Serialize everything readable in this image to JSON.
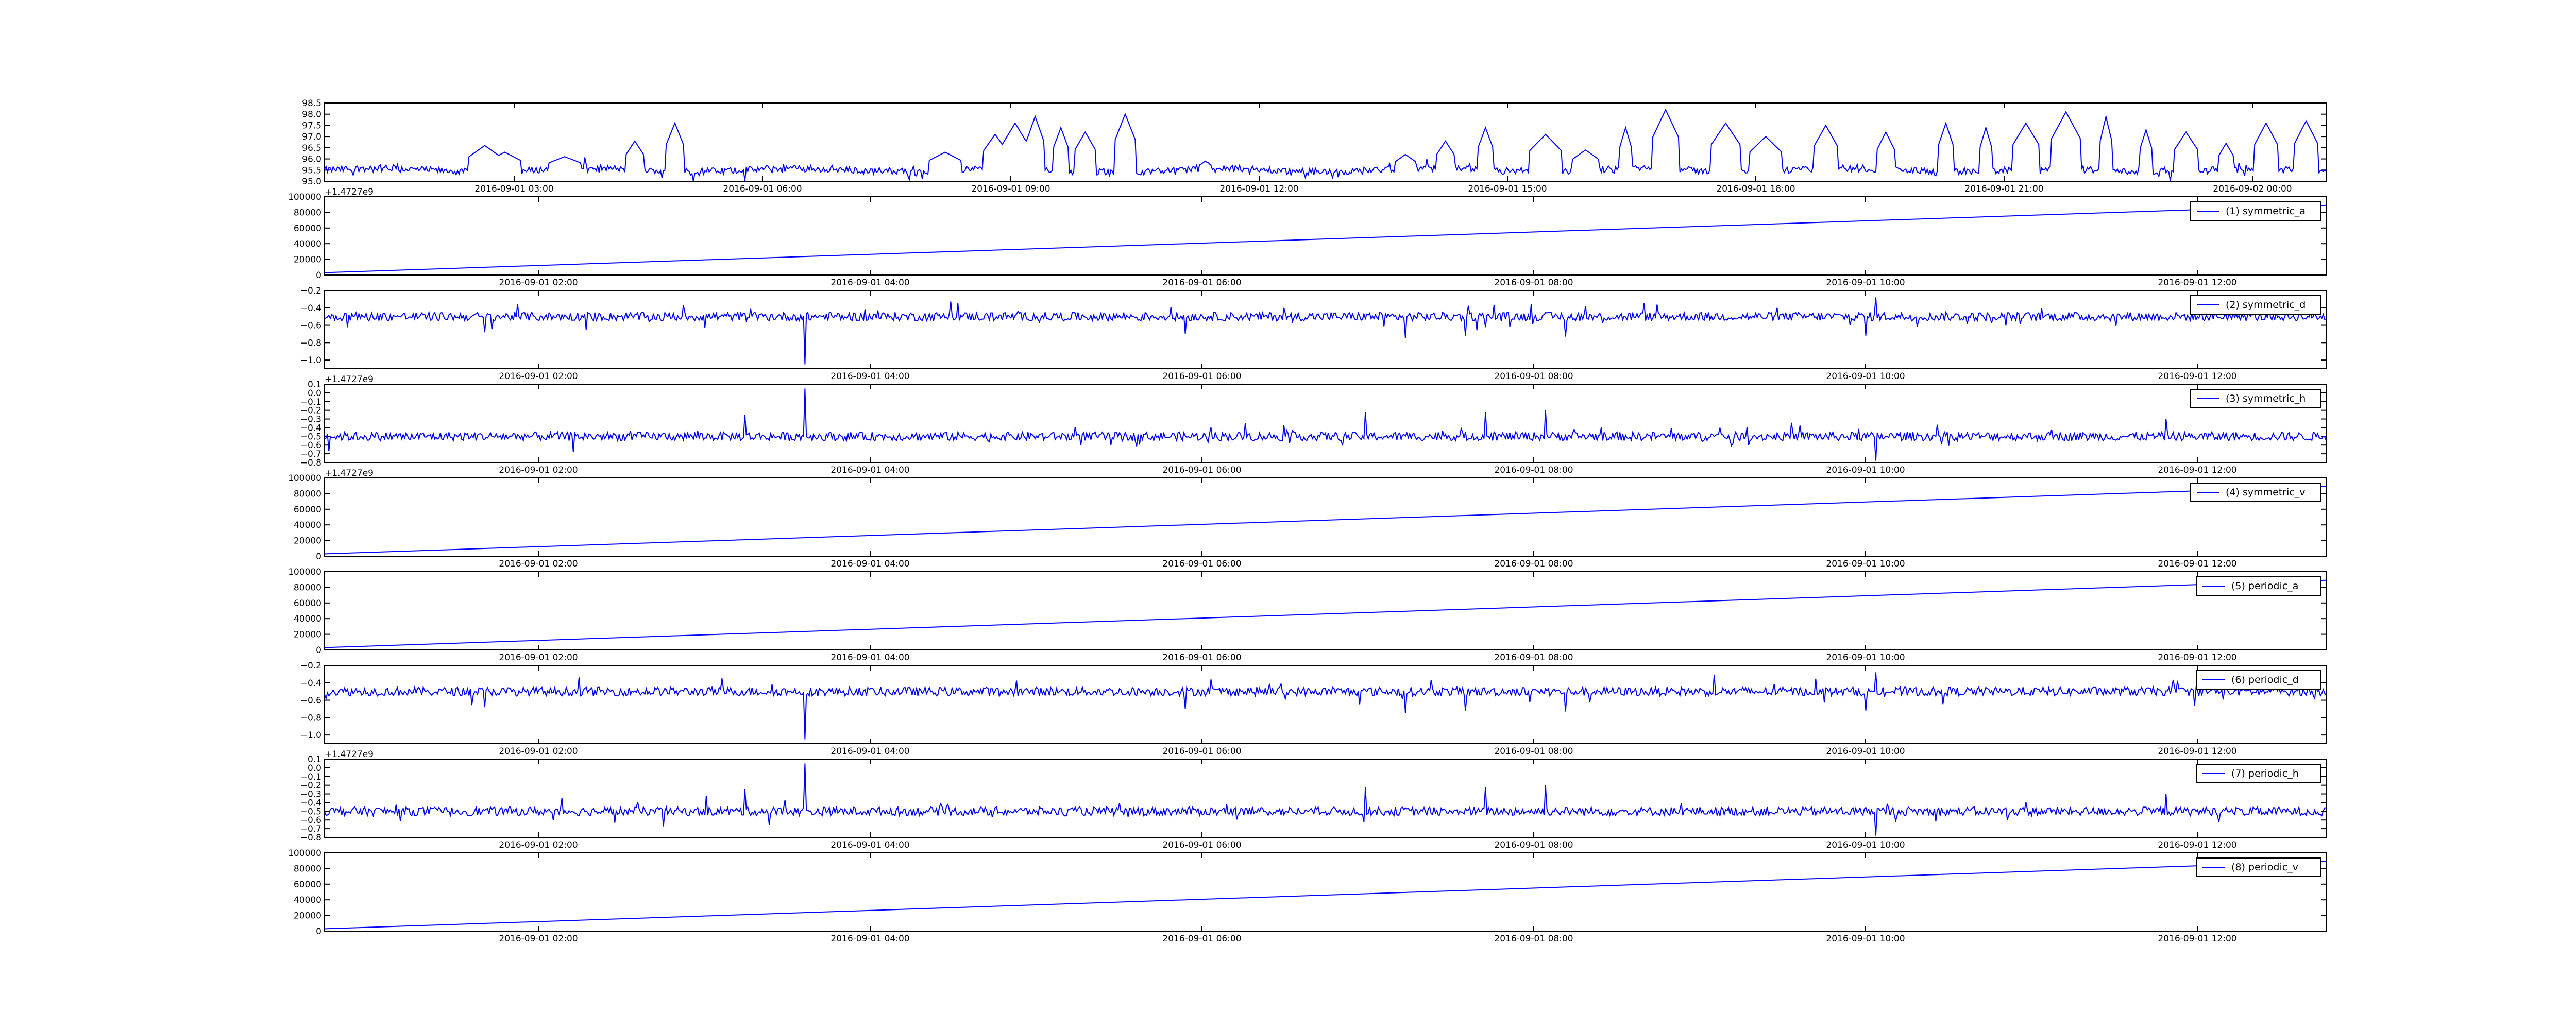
{
  "figure": {
    "background": "#ffffff",
    "line_color": "#0000ff",
    "legend_border": "#000000"
  },
  "chart_data": [
    {
      "type": "line",
      "yticks": [
        "95.0",
        "95.5",
        "96.0",
        "96.5",
        "97.0",
        "97.5",
        "98.0",
        "98.5"
      ],
      "ylim": [
        95.0,
        98.5
      ],
      "xticks": [
        "2016-09-01 03:00",
        "2016-09-01 06:00",
        "2016-09-01 09:00",
        "2016-09-01 12:00",
        "2016-09-01 15:00",
        "2016-09-01 18:00",
        "2016-09-01 21:00",
        "2016-09-02 00:00"
      ],
      "offset_label": "",
      "legend": [],
      "series": [
        {
          "kind": "noisy",
          "baseline": 95.5,
          "noise": 0.15,
          "spikes": [
            {
              "at": 0.08,
              "v": 96.6
            },
            {
              "at": 0.09,
              "v": 96.3
            },
            {
              "at": 0.12,
              "v": 96.1
            },
            {
              "at": 0.155,
              "v": 96.8
            },
            {
              "at": 0.175,
              "v": 97.6
            },
            {
              "at": 0.31,
              "v": 96.3
            },
            {
              "at": 0.335,
              "v": 97.1
            },
            {
              "at": 0.345,
              "v": 97.6
            },
            {
              "at": 0.355,
              "v": 97.9
            },
            {
              "at": 0.368,
              "v": 97.4
            },
            {
              "at": 0.38,
              "v": 97.2
            },
            {
              "at": 0.4,
              "v": 98.0
            },
            {
              "at": 0.44,
              "v": 95.9
            },
            {
              "at": 0.54,
              "v": 96.2
            },
            {
              "at": 0.56,
              "v": 96.8
            },
            {
              "at": 0.58,
              "v": 97.4
            },
            {
              "at": 0.61,
              "v": 97.1
            },
            {
              "at": 0.63,
              "v": 96.4
            },
            {
              "at": 0.65,
              "v": 97.4
            },
            {
              "at": 0.67,
              "v": 98.2
            },
            {
              "at": 0.7,
              "v": 97.6
            },
            {
              "at": 0.72,
              "v": 97.0
            },
            {
              "at": 0.75,
              "v": 97.5
            },
            {
              "at": 0.78,
              "v": 97.2
            },
            {
              "at": 0.81,
              "v": 97.6
            },
            {
              "at": 0.83,
              "v": 97.4
            },
            {
              "at": 0.85,
              "v": 97.6
            },
            {
              "at": 0.87,
              "v": 98.1
            },
            {
              "at": 0.89,
              "v": 97.9
            },
            {
              "at": 0.91,
              "v": 97.3
            },
            {
              "at": 0.93,
              "v": 97.2
            },
            {
              "at": 0.95,
              "v": 96.7
            },
            {
              "at": 0.97,
              "v": 97.6
            },
            {
              "at": 0.99,
              "v": 97.7
            }
          ]
        }
      ]
    },
    {
      "type": "line",
      "yticks": [
        "0",
        "20000",
        "40000",
        "60000",
        "80000",
        "100000"
      ],
      "ylim": [
        0,
        100000
      ],
      "xticks": [
        "2016-09-01 02:00",
        "2016-09-01 04:00",
        "2016-09-01 06:00",
        "2016-09-01 08:00",
        "2016-09-01 10:00",
        "2016-09-01 12:00"
      ],
      "offset_label": "+1.4727e9",
      "legend": [
        "(1) symmetric_a"
      ],
      "series": [
        {
          "name": "(1) symmetric_a",
          "kind": "linear",
          "y_start": 3000,
          "y_end": 89000
        }
      ]
    },
    {
      "type": "line",
      "yticks": [
        "−1.0",
        "−0.8",
        "−0.6",
        "−0.4",
        "−0.2"
      ],
      "ylim": [
        -1.1,
        -0.2
      ],
      "xticks": [
        "2016-09-01 02:00",
        "2016-09-01 04:00",
        "2016-09-01 06:00",
        "2016-09-01 08:00",
        "2016-09-01 10:00",
        "2016-09-01 12:00"
      ],
      "offset_label": "",
      "legend": [
        "(2) symmetric_d"
      ],
      "series": [
        {
          "name": "(2) symmetric_d",
          "kind": "noisy",
          "baseline": -0.5,
          "noise": 0.05,
          "spikes": [
            {
              "at": 0.24,
              "v": -1.05
            },
            {
              "at": 0.08,
              "v": -0.68
            },
            {
              "at": 0.43,
              "v": -0.7
            },
            {
              "at": 0.54,
              "v": -0.75
            },
            {
              "at": 0.57,
              "v": -0.72
            },
            {
              "at": 0.62,
              "v": -0.73
            },
            {
              "at": 0.775,
              "v": -0.28
            },
            {
              "at": 0.77,
              "v": -0.72
            }
          ]
        }
      ]
    },
    {
      "type": "line",
      "yticks": [
        "−0.8",
        "−0.7",
        "−0.6",
        "−0.5",
        "−0.4",
        "−0.3",
        "−0.2",
        "−0.1",
        "0.0",
        "0.1"
      ],
      "ylim": [
        -0.8,
        0.1
      ],
      "xticks": [
        "2016-09-01 02:00",
        "2016-09-01 04:00",
        "2016-09-01 06:00",
        "2016-09-01 08:00",
        "2016-09-01 10:00",
        "2016-09-01 12:00"
      ],
      "offset_label": "+1.4727e9",
      "legend": [
        "(3) symmetric_h"
      ],
      "series": [
        {
          "name": "(3) symmetric_h",
          "kind": "noisy",
          "baseline": -0.5,
          "noise": 0.05,
          "spikes": [
            {
              "at": 0.24,
              "v": 0.05
            },
            {
              "at": 0.21,
              "v": -0.25
            },
            {
              "at": 0.52,
              "v": -0.22
            },
            {
              "at": 0.58,
              "v": -0.22
            },
            {
              "at": 0.61,
              "v": -0.2
            },
            {
              "at": 0.775,
              "v": -0.78
            },
            {
              "at": 0.92,
              "v": -0.3
            }
          ]
        }
      ]
    },
    {
      "type": "line",
      "yticks": [
        "0",
        "20000",
        "40000",
        "60000",
        "80000",
        "100000"
      ],
      "ylim": [
        0,
        100000
      ],
      "xticks": [
        "2016-09-01 02:00",
        "2016-09-01 04:00",
        "2016-09-01 06:00",
        "2016-09-01 08:00",
        "2016-09-01 10:00",
        "2016-09-01 12:00"
      ],
      "offset_label": "+1.4727e9",
      "legend": [
        "(4) symmetric_v"
      ],
      "series": [
        {
          "name": "(4) symmetric_v",
          "kind": "linear",
          "y_start": 3000,
          "y_end": 89000
        }
      ]
    },
    {
      "type": "line",
      "yticks": [
        "0",
        "20000",
        "40000",
        "60000",
        "80000",
        "100000"
      ],
      "ylim": [
        0,
        100000
      ],
      "xticks": [
        "2016-09-01 02:00",
        "2016-09-01 04:00",
        "2016-09-01 06:00",
        "2016-09-01 08:00",
        "2016-09-01 10:00",
        "2016-09-01 12:00"
      ],
      "offset_label": "",
      "legend": [
        "(5) periodic_a"
      ],
      "series": [
        {
          "name": "(5) periodic_a",
          "kind": "linear",
          "y_start": 3000,
          "y_end": 89000
        }
      ]
    },
    {
      "type": "line",
      "yticks": [
        "−1.0",
        "−0.8",
        "−0.6",
        "−0.4",
        "−0.2"
      ],
      "ylim": [
        -1.1,
        -0.2
      ],
      "xticks": [
        "2016-09-01 02:00",
        "2016-09-01 04:00",
        "2016-09-01 06:00",
        "2016-09-01 08:00",
        "2016-09-01 10:00",
        "2016-09-01 12:00"
      ],
      "offset_label": "",
      "legend": [
        "(6) periodic_d"
      ],
      "series": [
        {
          "name": "(6) periodic_d",
          "kind": "noisy",
          "baseline": -0.5,
          "noise": 0.05,
          "spikes": [
            {
              "at": 0.24,
              "v": -1.05
            },
            {
              "at": 0.08,
              "v": -0.68
            },
            {
              "at": 0.43,
              "v": -0.7
            },
            {
              "at": 0.54,
              "v": -0.75
            },
            {
              "at": 0.57,
              "v": -0.72
            },
            {
              "at": 0.62,
              "v": -0.73
            },
            {
              "at": 0.775,
              "v": -0.28
            },
            {
              "at": 0.77,
              "v": -0.72
            }
          ]
        }
      ]
    },
    {
      "type": "line",
      "yticks": [
        "−0.8",
        "−0.7",
        "−0.6",
        "−0.5",
        "−0.4",
        "−0.3",
        "−0.2",
        "−0.1",
        "0.0",
        "0.1"
      ],
      "ylim": [
        -0.8,
        0.1
      ],
      "xticks": [
        "2016-09-01 02:00",
        "2016-09-01 04:00",
        "2016-09-01 06:00",
        "2016-09-01 08:00",
        "2016-09-01 10:00",
        "2016-09-01 12:00"
      ],
      "offset_label": "+1.4727e9",
      "legend": [
        "(7) periodic_h"
      ],
      "series": [
        {
          "name": "(7) periodic_h",
          "kind": "noisy",
          "baseline": -0.5,
          "noise": 0.05,
          "spikes": [
            {
              "at": 0.24,
              "v": 0.05
            },
            {
              "at": 0.21,
              "v": -0.25
            },
            {
              "at": 0.52,
              "v": -0.22
            },
            {
              "at": 0.58,
              "v": -0.22
            },
            {
              "at": 0.61,
              "v": -0.2
            },
            {
              "at": 0.775,
              "v": -0.78
            },
            {
              "at": 0.92,
              "v": -0.3
            }
          ]
        }
      ]
    },
    {
      "type": "line",
      "yticks": [
        "0",
        "20000",
        "40000",
        "60000",
        "80000",
        "100000"
      ],
      "ylim": [
        0,
        100000
      ],
      "xticks": [
        "2016-09-01 02:00",
        "2016-09-01 04:00",
        "2016-09-01 06:00",
        "2016-09-01 08:00",
        "2016-09-01 10:00",
        "2016-09-01 12:00"
      ],
      "offset_label": "",
      "legend": [
        "(8) periodic_v"
      ],
      "series": [
        {
          "name": "(8) periodic_v",
          "kind": "linear",
          "y_start": 3000,
          "y_end": 89000
        }
      ]
    }
  ]
}
